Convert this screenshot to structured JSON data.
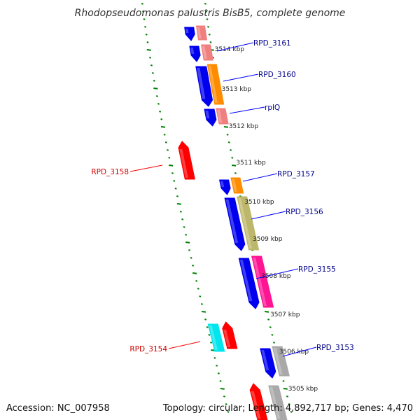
{
  "title": "Rhodopseudomonas palustris BisB5, complete genome",
  "accession": "Accession: NC_007958",
  "topology": "Topology: circular; Length: 4,892,717 bp; Genes: 4,470",
  "colors": {
    "backbone": "#808080",
    "tick": "#008000",
    "label_plus": "#00008b",
    "label_minus": "#cc0000",
    "label_line_plus": "#0000ff",
    "label_line_minus": "#ff0000"
  },
  "kbp_labels": [
    "3514 kbp",
    "3513 kbp",
    "3512 kbp",
    "3511 kbp",
    "3510 kbp",
    "3509 kbp",
    "3508 kbp",
    "3507 kbp",
    "3506 kbp",
    "3505 kbp"
  ],
  "gene_labels_plus": [
    "RPD_3161",
    "RPD_3160",
    "rplQ",
    "RPD_3157",
    "RPD_3156",
    "RPD_3155",
    "RPD_3153"
  ],
  "gene_labels_minus": [
    "RPD_3158",
    "RPD_3154"
  ],
  "feature_colors": {
    "cds": "#0000ee",
    "trna_like": "#f08080",
    "orange": "#ff8c00",
    "khaki": "#bdb76b",
    "pink": "#ff1493",
    "red": "#ff0000",
    "cyan": "#00e5ee",
    "gray": "#a9a9a9"
  }
}
